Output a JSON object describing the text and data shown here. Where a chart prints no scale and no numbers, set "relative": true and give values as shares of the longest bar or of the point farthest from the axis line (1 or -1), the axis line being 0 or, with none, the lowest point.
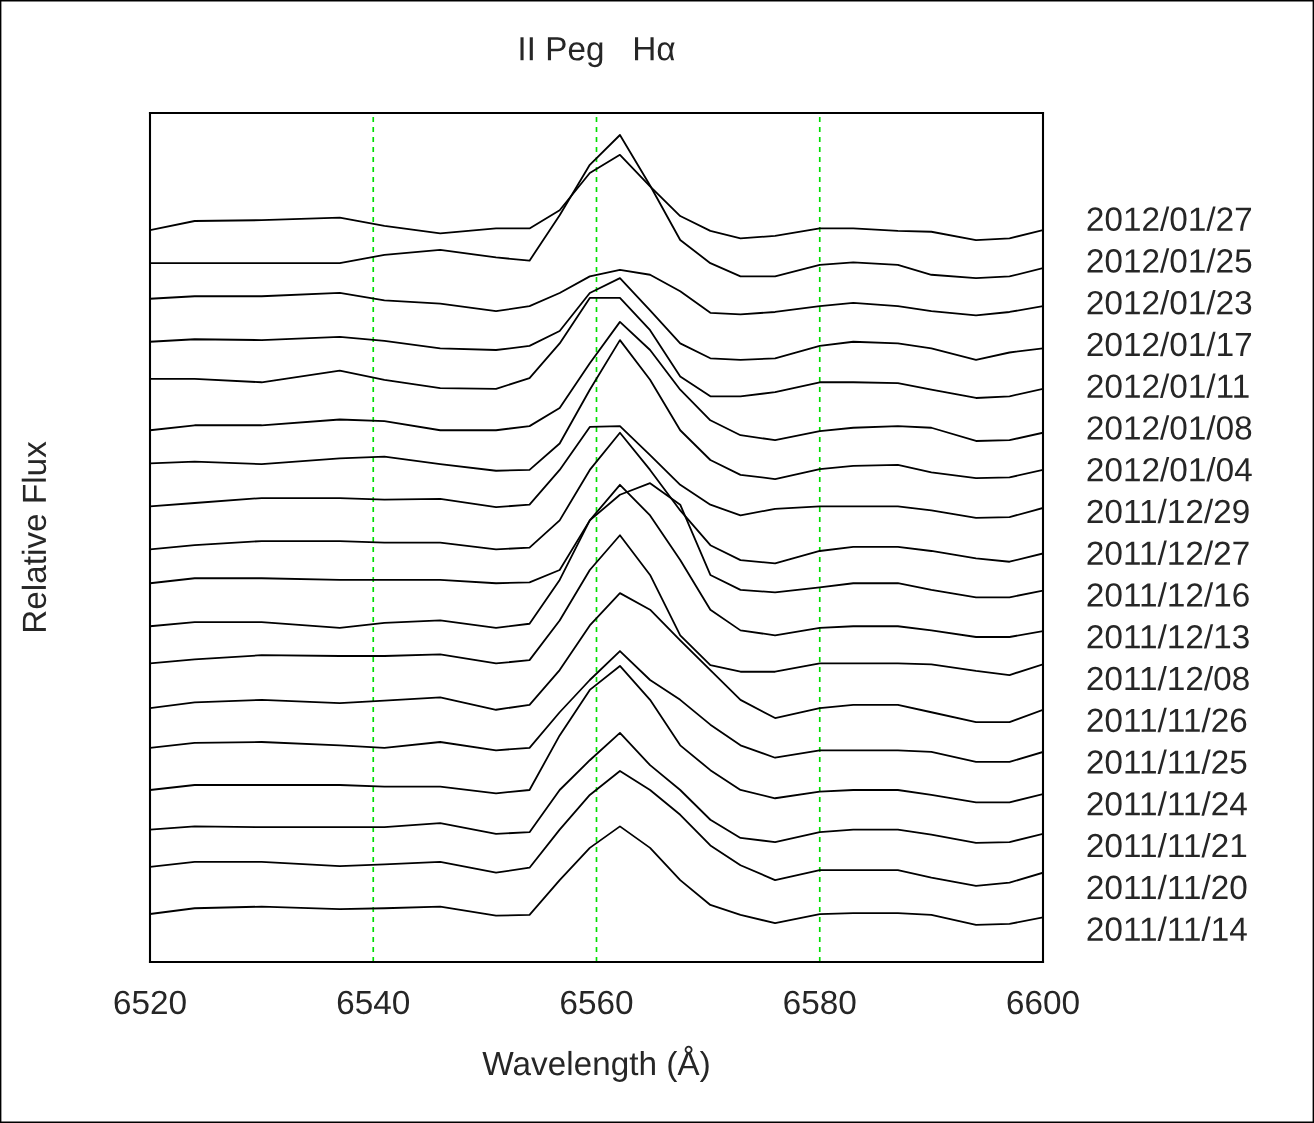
{
  "chart_data": {
    "type": "line",
    "title": "II Peg   Hα",
    "xlabel": "Wavelength (Å)",
    "ylabel": "Relative Flux",
    "relative": true,
    "x": [
      6520,
      6524,
      6530,
      6537,
      6541,
      6546,
      6551,
      6554,
      6556.7,
      6559.4,
      6562.1,
      6564.8,
      6567.5,
      6570.2,
      6572.9,
      6576,
      6580,
      6583,
      6587,
      6590,
      6594,
      6597,
      6600
    ],
    "xlim": [
      6520,
      6600
    ],
    "xticks": [
      6520,
      6540,
      6560,
      6580,
      6600
    ],
    "line_style": "solid",
    "legend": false,
    "grid": false,
    "ref_lines": [
      {
        "axis": "x",
        "value": 6540,
        "color": "#00dd00",
        "line_style": "dashed"
      },
      {
        "axis": "x",
        "value": 6560,
        "color": "#00dd00",
        "line_style": "dashed"
      },
      {
        "axis": "x",
        "value": 6580,
        "color": "#00dd00",
        "line_style": "dashed"
      }
    ],
    "series": [
      {
        "name": "2012/01/27",
        "color": "#000000",
        "values": [
          0.885,
          0.896,
          0.897,
          0.9,
          0.89,
          0.881,
          0.887,
          0.887,
          0.909,
          0.954,
          0.976,
          0.938,
          0.902,
          0.884,
          0.875,
          0.878,
          0.887,
          0.887,
          0.884,
          0.883,
          0.873,
          0.875,
          0.885
        ]
      },
      {
        "name": "2012/01/25",
        "color": "#000000",
        "values": [
          0.845,
          0.845,
          0.845,
          0.845,
          0.855,
          0.861,
          0.852,
          0.848,
          0.903,
          0.964,
          1,
          0.939,
          0.873,
          0.845,
          0.829,
          0.829,
          0.843,
          0.846,
          0.843,
          0.831,
          0.827,
          0.829,
          0.839
        ]
      },
      {
        "name": "2012/01/23",
        "color": "#000000",
        "values": [
          0.802,
          0.805,
          0.805,
          0.809,
          0.8,
          0.796,
          0.787,
          0.793,
          0.809,
          0.829,
          0.837,
          0.831,
          0.811,
          0.785,
          0.783,
          0.786,
          0.793,
          0.797,
          0.793,
          0.787,
          0.782,
          0.786,
          0.793
        ]
      },
      {
        "name": "2012/01/17",
        "color": "#000000",
        "values": [
          0.75,
          0.753,
          0.752,
          0.756,
          0.751,
          0.742,
          0.74,
          0.745,
          0.763,
          0.809,
          0.827,
          0.788,
          0.748,
          0.73,
          0.728,
          0.73,
          0.745,
          0.75,
          0.748,
          0.742,
          0.728,
          0.737,
          0.742
        ]
      },
      {
        "name": "2012/01/11",
        "color": "#000000",
        "values": [
          0.705,
          0.705,
          0.701,
          0.715,
          0.704,
          0.694,
          0.693,
          0.706,
          0.748,
          0.803,
          0.803,
          0.764,
          0.708,
          0.684,
          0.684,
          0.689,
          0.701,
          0.701,
          0.7,
          0.692,
          0.682,
          0.684,
          0.693
        ]
      },
      {
        "name": "2012/01/08",
        "color": "#000000",
        "values": [
          0.643,
          0.649,
          0.649,
          0.656,
          0.654,
          0.643,
          0.643,
          0.648,
          0.67,
          0.724,
          0.774,
          0.74,
          0.692,
          0.655,
          0.637,
          0.631,
          0.642,
          0.646,
          0.648,
          0.646,
          0.63,
          0.631,
          0.64
        ]
      },
      {
        "name": "2012/01/04",
        "color": "#000000",
        "values": [
          0.603,
          0.605,
          0.602,
          0.609,
          0.611,
          0.602,
          0.594,
          0.595,
          0.627,
          0.692,
          0.752,
          0.704,
          0.643,
          0.607,
          0.589,
          0.584,
          0.596,
          0.6,
          0.601,
          0.592,
          0.585,
          0.586,
          0.595
        ]
      },
      {
        "name": "2011/12/29",
        "color": "#000000",
        "values": [
          0.551,
          0.555,
          0.561,
          0.561,
          0.559,
          0.56,
          0.55,
          0.553,
          0.595,
          0.647,
          0.648,
          0.613,
          0.577,
          0.553,
          0.54,
          0.548,
          0.551,
          0.551,
          0.551,
          0.546,
          0.537,
          0.538,
          0.549
        ]
      },
      {
        "name": "2011/12/27",
        "color": "#000000",
        "values": [
          0.499,
          0.504,
          0.509,
          0.509,
          0.507,
          0.507,
          0.499,
          0.501,
          0.534,
          0.595,
          0.64,
          0.595,
          0.546,
          0.504,
          0.486,
          0.482,
          0.497,
          0.502,
          0.502,
          0.497,
          0.488,
          0.484,
          0.494
        ]
      },
      {
        "name": "2011/12/16",
        "color": "#000000",
        "values": [
          0.458,
          0.464,
          0.464,
          0.462,
          0.462,
          0.462,
          0.458,
          0.459,
          0.474,
          0.534,
          0.565,
          0.579,
          0.553,
          0.468,
          0.45,
          0.447,
          0.453,
          0.458,
          0.458,
          0.45,
          0.441,
          0.441,
          0.449
        ]
      },
      {
        "name": "2011/12/13",
        "color": "#000000",
        "values": [
          0.406,
          0.411,
          0.411,
          0.404,
          0.41,
          0.413,
          0.404,
          0.409,
          0.462,
          0.534,
          0.577,
          0.54,
          0.486,
          0.426,
          0.401,
          0.395,
          0.404,
          0.406,
          0.406,
          0.401,
          0.393,
          0.393,
          0.4
        ]
      },
      {
        "name": "2011/12/08",
        "color": "#000000",
        "values": [
          0.361,
          0.366,
          0.371,
          0.37,
          0.37,
          0.372,
          0.361,
          0.365,
          0.413,
          0.474,
          0.516,
          0.468,
          0.395,
          0.359,
          0.351,
          0.351,
          0.361,
          0.361,
          0.361,
          0.36,
          0.352,
          0.347,
          0.36
        ]
      },
      {
        "name": "2011/11/26",
        "color": "#000000",
        "values": [
          0.307,
          0.314,
          0.317,
          0.313,
          0.316,
          0.32,
          0.305,
          0.311,
          0.353,
          0.407,
          0.446,
          0.426,
          0.389,
          0.353,
          0.317,
          0.295,
          0.307,
          0.311,
          0.311,
          0.302,
          0.29,
          0.29,
          0.305
        ]
      },
      {
        "name": "2011/11/25",
        "color": "#000000",
        "values": [
          0.259,
          0.265,
          0.266,
          0.262,
          0.259,
          0.266,
          0.256,
          0.259,
          0.302,
          0.341,
          0.376,
          0.341,
          0.317,
          0.287,
          0.262,
          0.247,
          0.256,
          0.256,
          0.256,
          0.254,
          0.242,
          0.242,
          0.254
        ]
      },
      {
        "name": "2011/11/24",
        "color": "#000000",
        "values": [
          0.208,
          0.214,
          0.214,
          0.214,
          0.212,
          0.212,
          0.204,
          0.208,
          0.274,
          0.329,
          0.358,
          0.317,
          0.262,
          0.232,
          0.208,
          0.198,
          0.206,
          0.208,
          0.208,
          0.202,
          0.193,
          0.193,
          0.203
        ]
      },
      {
        "name": "2011/11/21",
        "color": "#000000",
        "values": [
          0.16,
          0.164,
          0.163,
          0.163,
          0.163,
          0.168,
          0.155,
          0.157,
          0.208,
          0.244,
          0.277,
          0.238,
          0.208,
          0.172,
          0.15,
          0.145,
          0.157,
          0.16,
          0.16,
          0.154,
          0.144,
          0.145,
          0.155
        ]
      },
      {
        "name": "2011/11/20",
        "color": "#000000",
        "values": [
          0.115,
          0.121,
          0.121,
          0.116,
          0.118,
          0.121,
          0.108,
          0.114,
          0.16,
          0.202,
          0.231,
          0.208,
          0.178,
          0.141,
          0.117,
          0.099,
          0.111,
          0.111,
          0.111,
          0.102,
          0.092,
          0.096,
          0.108
        ]
      },
      {
        "name": "2011/11/14",
        "color": "#000000",
        "values": [
          0.058,
          0.065,
          0.067,
          0.064,
          0.065,
          0.067,
          0.056,
          0.057,
          0.099,
          0.138,
          0.164,
          0.138,
          0.099,
          0.069,
          0.057,
          0.047,
          0.058,
          0.059,
          0.059,
          0.057,
          0.045,
          0.046,
          0.054
        ]
      }
    ]
  }
}
